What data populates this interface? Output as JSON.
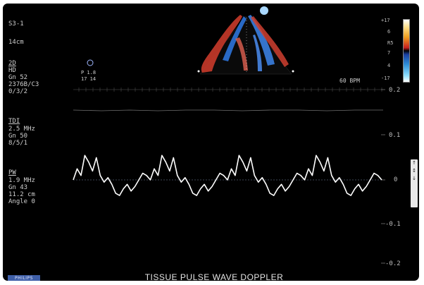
{
  "probe": "S3-1",
  "depth": "14cm",
  "mode_2d": {
    "heading": "2D",
    "lines": [
      "HD",
      "Gn 52",
      "2376B/C3",
      "0/3/2"
    ]
  },
  "tdi": {
    "heading": "TDI",
    "lines": [
      "2.5 MHz",
      "Gn 50",
      "8/5/1"
    ]
  },
  "pw": {
    "heading": "PW",
    "lines": [
      "1.9 MHz",
      "Gn 43",
      "11.2 cm",
      "Angle 0"
    ]
  },
  "marker_text": [
    "P 1.8",
    "17 14"
  ],
  "heart_rate": "60 BPM",
  "color_scale": {
    "labels": [
      "+17",
      "6",
      "R5",
      "7",
      "4",
      "-17"
    ],
    "colors": [
      "#ffffff",
      "#ffd060",
      "#e03020",
      "#000000",
      "#2a70d0",
      "#9fe8ff"
    ]
  },
  "velocity_scale": [
    "0.2",
    "0.1",
    "0",
    "-0.1",
    "-0.2"
  ],
  "side_control": [
    "↑",
    "↕",
    "↓"
  ],
  "brand": "PHILIPS",
  "footer_title": "TISSUE PULSE WAVE DOPPLER",
  "colors": {
    "background": "#000000",
    "trace": "#ffffff",
    "baseline": "#7a8aa8"
  },
  "doppler_data": {
    "type": "line",
    "description_cycles": 4,
    "y_range": [
      -0.2,
      0.2
    ],
    "cycle_shape_velocity": [
      0,
      0.05,
      0.02,
      0.11,
      0.08,
      0.04,
      0.1,
      0.02,
      -0.01,
      0.01,
      -0.02,
      -0.06,
      -0.07,
      -0.04,
      -0.02,
      -0.05,
      -0.03,
      0,
      0.03,
      0.02,
      0
    ]
  }
}
